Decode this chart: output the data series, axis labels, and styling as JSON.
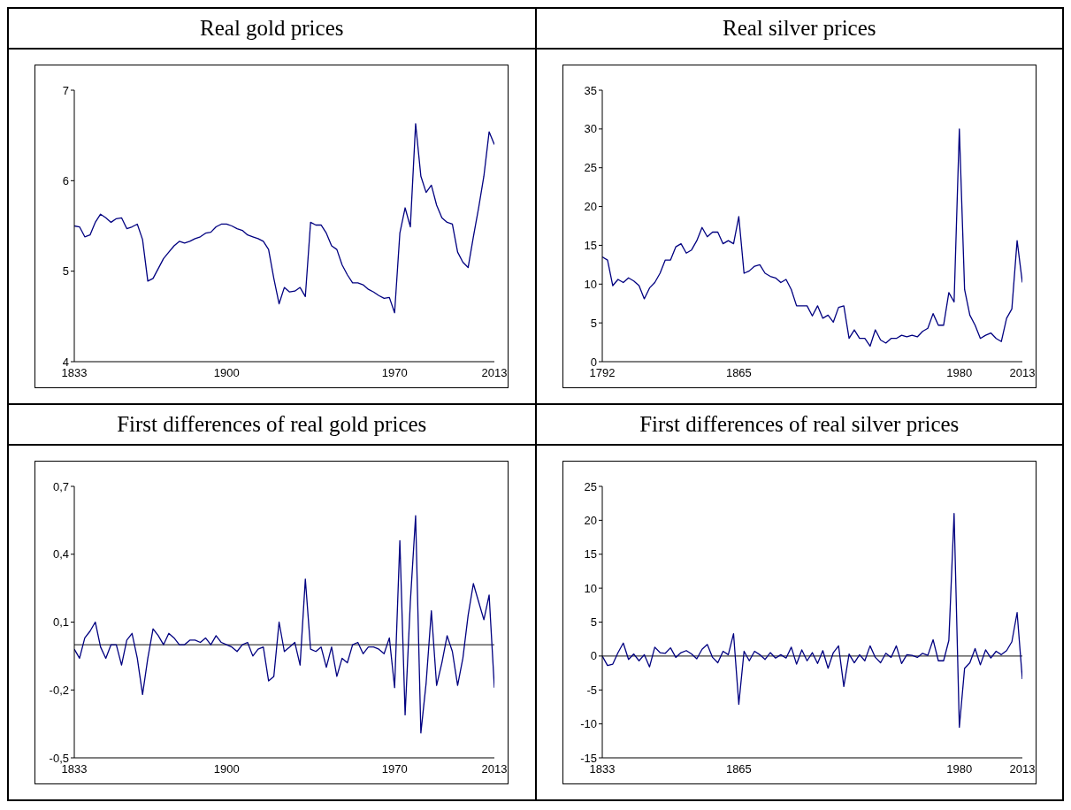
{
  "chart_data": [
    {
      "type": "line",
      "title": "Real gold prices",
      "categories": [
        "1833",
        null,
        null,
        null,
        null,
        null,
        null,
        null,
        null,
        null,
        null,
        null,
        null,
        null,
        null,
        null,
        null,
        null,
        null,
        null,
        null,
        null,
        null,
        null,
        null,
        null,
        null,
        null,
        null,
        "1900",
        null,
        null,
        null,
        null,
        null,
        null,
        null,
        null,
        null,
        null,
        null,
        null,
        null,
        null,
        null,
        null,
        null,
        null,
        null,
        null,
        null,
        null,
        null,
        null,
        null,
        null,
        null,
        null,
        null,
        null,
        null,
        "1970",
        null,
        null,
        null,
        null,
        null,
        null,
        null,
        null,
        null,
        null,
        null,
        null,
        null,
        null,
        null,
        null,
        null,
        null,
        "2013"
      ],
      "series": [
        {
          "color": "#000080",
          "values": [
            5.5,
            5.49,
            5.38,
            5.4,
            5.54,
            5.63,
            5.59,
            5.54,
            5.58,
            5.59,
            5.47,
            5.49,
            5.52,
            5.35,
            4.89,
            4.92,
            5.03,
            5.14,
            5.21,
            5.28,
            5.33,
            5.31,
            5.33,
            5.36,
            5.38,
            5.42,
            5.43,
            5.49,
            5.52,
            5.52,
            5.5,
            5.47,
            5.45,
            5.4,
            5.38,
            5.36,
            5.33,
            5.24,
            4.92,
            4.64,
            4.82,
            4.77,
            4.78,
            4.82,
            4.72,
            5.54,
            5.51,
            5.51,
            5.42,
            5.28,
            5.24,
            5.07,
            4.96,
            4.87,
            4.87,
            4.85,
            4.8,
            4.77,
            4.73,
            4.7,
            4.71,
            4.54,
            5.42,
            5.7,
            5.49,
            6.63,
            6.05,
            5.87,
            5.95,
            5.73,
            5.59,
            5.54,
            5.52,
            5.21,
            5.1,
            5.04,
            5.38,
            5.7,
            6.05,
            6.54,
            6.4
          ]
        }
      ],
      "ylim": [
        4,
        7
      ],
      "yticks": [
        4,
        5,
        6,
        7
      ],
      "grid": false
    },
    {
      "type": "line",
      "title": "Real silver prices",
      "categories": [
        "1792",
        null,
        null,
        null,
        null,
        null,
        null,
        null,
        null,
        null,
        null,
        null,
        null,
        null,
        null,
        null,
        null,
        null,
        null,
        null,
        null,
        null,
        null,
        null,
        null,
        null,
        "1865",
        null,
        null,
        null,
        null,
        null,
        null,
        null,
        null,
        null,
        null,
        null,
        null,
        null,
        null,
        null,
        null,
        null,
        null,
        null,
        null,
        null,
        null,
        null,
        null,
        null,
        null,
        null,
        null,
        null,
        null,
        null,
        null,
        null,
        null,
        null,
        null,
        null,
        null,
        null,
        null,
        null,
        "1980",
        null,
        null,
        null,
        null,
        null,
        null,
        null,
        null,
        null,
        null,
        null,
        "2013"
      ],
      "series": [
        {
          "color": "#000080",
          "values": [
            13.5,
            13.1,
            9.8,
            10.6,
            10.2,
            10.8,
            10.4,
            9.8,
            8.1,
            9.5,
            10.2,
            11.4,
            13.1,
            13.1,
            14.8,
            15.2,
            14.0,
            14.4,
            15.6,
            17.3,
            16.1,
            16.7,
            16.7,
            15.2,
            15.6,
            15.2,
            18.7,
            11.4,
            11.7,
            12.3,
            12.5,
            11.4,
            11.0,
            10.8,
            10.2,
            10.6,
            9.3,
            7.2,
            7.2,
            7.2,
            5.9,
            7.2,
            5.6,
            6.0,
            5.1,
            7.0,
            7.2,
            3.0,
            4.1,
            3.0,
            3.0,
            2.0,
            4.1,
            2.8,
            2.4,
            3.0,
            3.0,
            3.4,
            3.2,
            3.4,
            3.2,
            3.9,
            4.3,
            6.2,
            4.7,
            4.7,
            8.9,
            7.7,
            30.0,
            9.3,
            6.0,
            4.7,
            3.0,
            3.4,
            3.7,
            3.0,
            2.6,
            5.6,
            6.8,
            15.6,
            10.2
          ]
        }
      ],
      "ylim": [
        0,
        35
      ],
      "yticks": [
        0,
        5,
        10,
        15,
        20,
        25,
        30,
        35
      ],
      "grid": false
    },
    {
      "type": "line",
      "title": "First differences of real gold prices",
      "categories": [
        "1833",
        null,
        null,
        null,
        null,
        null,
        null,
        null,
        null,
        null,
        null,
        null,
        null,
        null,
        null,
        null,
        null,
        null,
        null,
        null,
        null,
        null,
        null,
        null,
        null,
        null,
        null,
        null,
        null,
        "1900",
        null,
        null,
        null,
        null,
        null,
        null,
        null,
        null,
        null,
        null,
        null,
        null,
        null,
        null,
        null,
        null,
        null,
        null,
        null,
        null,
        null,
        null,
        null,
        null,
        null,
        null,
        null,
        null,
        null,
        null,
        null,
        "1970",
        null,
        null,
        null,
        null,
        null,
        null,
        null,
        null,
        null,
        null,
        null,
        null,
        null,
        null,
        null,
        null,
        null,
        null,
        "2013"
      ],
      "series": [
        {
          "color": "#000080",
          "values": [
            -0.02,
            -0.06,
            0.03,
            0.06,
            0.1,
            -0.01,
            -0.06,
            0.0,
            0.0,
            -0.09,
            0.02,
            0.05,
            -0.06,
            -0.22,
            -0.06,
            0.07,
            0.04,
            0.0,
            0.05,
            0.03,
            0.0,
            0.0,
            0.02,
            0.02,
            0.01,
            0.03,
            0.0,
            0.04,
            0.01,
            0.0,
            -0.01,
            -0.03,
            0.0,
            0.01,
            -0.05,
            -0.02,
            -0.01,
            -0.16,
            -0.14,
            0.1,
            -0.03,
            -0.01,
            0.01,
            -0.09,
            0.29,
            -0.02,
            -0.03,
            -0.01,
            -0.1,
            -0.01,
            -0.14,
            -0.06,
            -0.08,
            0.0,
            0.01,
            -0.04,
            -0.01,
            -0.01,
            -0.02,
            -0.04,
            0.03,
            -0.19,
            0.46,
            -0.31,
            0.19,
            0.57,
            -0.39,
            -0.17,
            0.15,
            -0.18,
            -0.08,
            0.04,
            -0.03,
            -0.18,
            -0.06,
            0.13,
            0.27,
            0.19,
            0.11,
            0.22,
            -0.19
          ]
        }
      ],
      "ylim": [
        -0.5,
        0.7
      ],
      "yticks": [
        {
          "value": -0.5,
          "label": "-0,5"
        },
        {
          "value": -0.2,
          "label": "-0,2"
        },
        {
          "value": 0.1,
          "label": "0,1"
        },
        {
          "value": 0.4,
          "label": "0,4"
        },
        {
          "value": 0.7,
          "label": "0,7"
        }
      ],
      "grid": false,
      "ref_lines": [
        {
          "axis": "y",
          "value": 0,
          "color": "#404040"
        }
      ]
    },
    {
      "type": "line",
      "title": "First differences of real silver prices",
      "categories": [
        "1833",
        null,
        null,
        null,
        null,
        null,
        null,
        null,
        null,
        null,
        null,
        null,
        null,
        null,
        null,
        null,
        null,
        null,
        null,
        null,
        null,
        null,
        null,
        null,
        null,
        null,
        "1865",
        null,
        null,
        null,
        null,
        null,
        null,
        null,
        null,
        null,
        null,
        null,
        null,
        null,
        null,
        null,
        null,
        null,
        null,
        null,
        null,
        null,
        null,
        null,
        null,
        null,
        null,
        null,
        null,
        null,
        null,
        null,
        null,
        null,
        null,
        null,
        null,
        null,
        null,
        null,
        null,
        null,
        "1980",
        null,
        null,
        null,
        null,
        null,
        null,
        null,
        null,
        null,
        null,
        null,
        "2013"
      ],
      "series": [
        {
          "color": "#000080",
          "values": [
            0,
            -1.4,
            -1.2,
            0.5,
            1.9,
            -0.5,
            0.3,
            -0.7,
            0.2,
            -1.6,
            1.3,
            0.5,
            0.4,
            1.2,
            -0.2,
            0.5,
            0.8,
            0.3,
            -0.4,
            1.0,
            1.7,
            -0.2,
            -1.0,
            0.7,
            0.2,
            3.3,
            -7.1,
            0.7,
            -0.7,
            0.7,
            0.2,
            -0.5,
            0.5,
            -0.3,
            0.2,
            -0.3,
            1.3,
            -1.2,
            0.9,
            -0.7,
            0.5,
            -1.1,
            0.8,
            -1.8,
            0.5,
            1.5,
            -4.5,
            0.3,
            -1.0,
            0.2,
            -0.7,
            1.5,
            -0.2,
            -1.0,
            0.4,
            -0.2,
            1.5,
            -1.1,
            0.2,
            0.1,
            -0.2,
            0.4,
            0.1,
            2.4,
            -0.7,
            -0.7,
            2.3,
            21.0,
            -10.5,
            -1.8,
            -1.0,
            1.1,
            -1.3,
            0.9,
            -0.3,
            0.7,
            0.2,
            0.8,
            2.1,
            6.4,
            -3.4
          ]
        }
      ],
      "ylim": [
        -15,
        25
      ],
      "yticks": [
        -15,
        -10,
        -5,
        0,
        5,
        10,
        15,
        20,
        25
      ],
      "grid": false,
      "ref_lines": [
        {
          "axis": "y",
          "value": 0,
          "color": "#404040"
        }
      ]
    }
  ]
}
